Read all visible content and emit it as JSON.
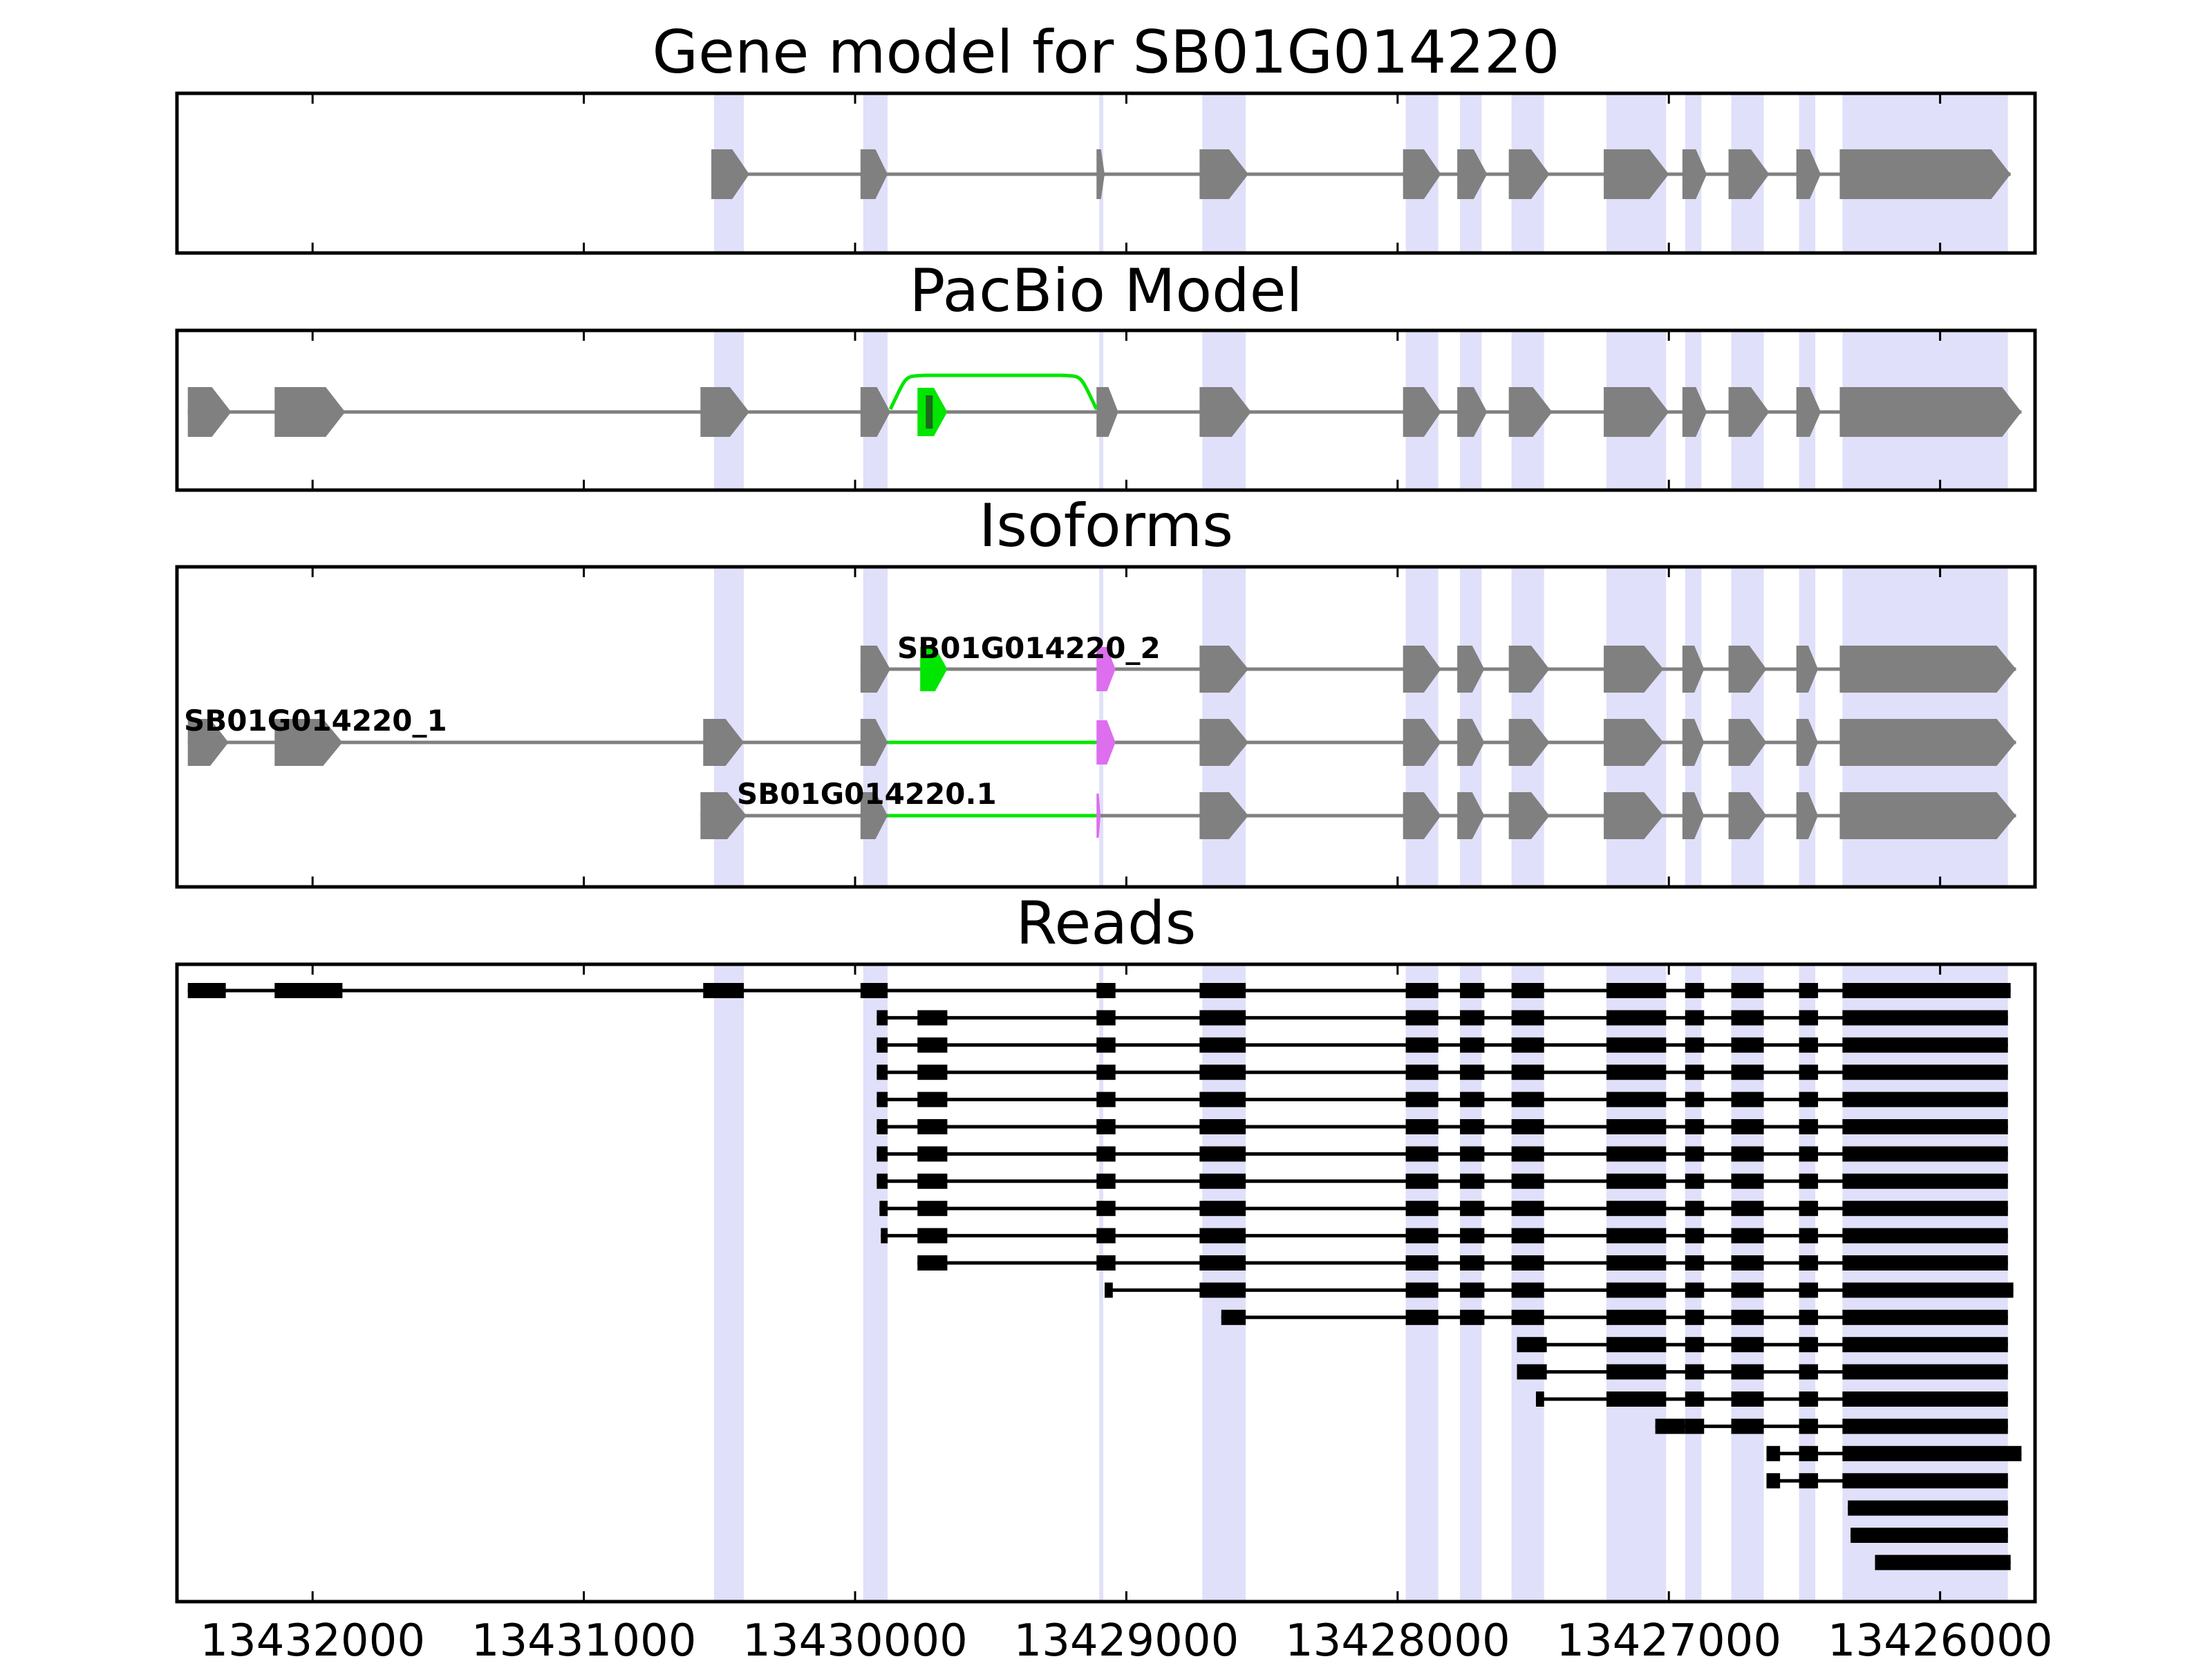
{
  "colors": {
    "exon": "#808080",
    "read": "#000000",
    "highlight": "#e0e0fa",
    "novel_exon": "#00e600",
    "alt_exon": "#dd6eee",
    "axis": "#000000"
  },
  "chart_data": {
    "type": "gene-model-tracks",
    "orientation": "reversed-x",
    "xlim": [
      13432500,
      13425650
    ],
    "xticks": [
      13432000,
      13431000,
      13430000,
      13429000,
      13428000,
      13427000,
      13426000
    ],
    "xtick_labels": [
      "13432000",
      "13431000",
      "13430000",
      "13429000",
      "13428000",
      "13427000",
      "13426000"
    ],
    "highlight_regions": [
      [
        13430520,
        13430410
      ],
      [
        13429970,
        13429880
      ],
      [
        13429100,
        13429085
      ],
      [
        13428720,
        13428560
      ],
      [
        13427970,
        13427850
      ],
      [
        13427770,
        13427690
      ],
      [
        13427580,
        13427460
      ],
      [
        13427230,
        13427010
      ],
      [
        13426940,
        13426880
      ],
      [
        13426770,
        13426650
      ],
      [
        13426520,
        13426460
      ],
      [
        13426360,
        13425750
      ]
    ],
    "gene_model": {
      "title": "Gene model for SB01G014220",
      "exons": [
        [
          13430530,
          13430390
        ],
        [
          13429980,
          13429880
        ],
        [
          13429110,
          13429080
        ],
        [
          13428730,
          13428550
        ],
        [
          13427980,
          13427840
        ],
        [
          13427780,
          13427670
        ],
        [
          13427590,
          13427440
        ],
        [
          13427240,
          13427000
        ],
        [
          13426950,
          13426860
        ],
        [
          13426780,
          13426630
        ],
        [
          13426530,
          13426440
        ],
        [
          13426370,
          13425740
        ]
      ]
    },
    "pacbio_model": {
      "title": "PacBio Model",
      "exons": [
        [
          13432460,
          13432300
        ],
        [
          13432140,
          13431880
        ],
        [
          13430570,
          13430390
        ],
        [
          13429980,
          13429870
        ],
        [
          13429110,
          13429030
        ],
        [
          13428730,
          13428540
        ],
        [
          13427980,
          13427840
        ],
        [
          13427780,
          13427670
        ],
        [
          13427590,
          13427430
        ],
        [
          13427240,
          13427000
        ],
        [
          13426950,
          13426860
        ],
        [
          13426780,
          13426630
        ],
        [
          13426530,
          13426440
        ],
        [
          13426370,
          13425700
        ]
      ],
      "novel_exon": [
        13429770,
        13429660
      ],
      "novel_arc": [
        13429870,
        13429110
      ]
    },
    "isoforms": {
      "title": "Isoforms",
      "tracks": [
        {
          "name": "SB01G014220_2",
          "exons": [
            [
              13429980,
              13429870
            ],
            [
              13428730,
              13428550
            ],
            [
              13427980,
              13427840
            ],
            [
              13427780,
              13427680
            ],
            [
              13427590,
              13427440
            ],
            [
              13427240,
              13427020
            ],
            [
              13426950,
              13426870
            ],
            [
              13426780,
              13426640
            ],
            [
              13426530,
              13426450
            ],
            [
              13426370,
              13425720
            ]
          ],
          "novel": [
            [
              13429760,
              13429660
            ]
          ],
          "alt": [
            [
              13429110,
              13429040
            ]
          ]
        },
        {
          "name": "SB01G014220_1",
          "exons": [
            [
              13432460,
              13432310
            ],
            [
              13432140,
              13431890
            ],
            [
              13430560,
              13430410
            ],
            [
              13429980,
              13429880
            ],
            [
              13428730,
              13428550
            ],
            [
              13427980,
              13427840
            ],
            [
              13427780,
              13427680
            ],
            [
              13427590,
              13427440
            ],
            [
              13427240,
              13427020
            ],
            [
              13426950,
              13426870
            ],
            [
              13426780,
              13426640
            ],
            [
              13426530,
              13426450
            ],
            [
              13426370,
              13425720
            ]
          ],
          "novel": [],
          "alt": [
            [
              13429110,
              13429040
            ]
          ],
          "green_intron": [
            13429880,
            13429110
          ]
        },
        {
          "name": "SB01G014220.1",
          "exons": [
            [
              13430570,
              13430400
            ],
            [
              13429980,
              13429880
            ],
            [
              13428730,
              13428550
            ],
            [
              13427980,
              13427840
            ],
            [
              13427780,
              13427680
            ],
            [
              13427590,
              13427440
            ],
            [
              13427240,
              13427020
            ],
            [
              13426950,
              13426870
            ],
            [
              13426780,
              13426640
            ],
            [
              13426530,
              13426450
            ],
            [
              13426370,
              13425720
            ]
          ],
          "novel": [],
          "alt": [
            [
              13429110,
              13429095
            ]
          ],
          "green_intron": [
            13429880,
            13429110
          ]
        }
      ]
    },
    "reads": {
      "title": "Reads",
      "rows": [
        [
          [
            13432460,
            13432320
          ],
          [
            13432140,
            13431890
          ],
          [
            13430560,
            13430410
          ],
          [
            13429980,
            13429880
          ],
          [
            13429110,
            13429040
          ],
          [
            13428730,
            13428560
          ],
          [
            13427970,
            13427850
          ],
          [
            13427770,
            13427680
          ],
          [
            13427580,
            13427460
          ],
          [
            13427230,
            13427010
          ],
          [
            13426940,
            13426870
          ],
          [
            13426770,
            13426650
          ],
          [
            13426520,
            13426450
          ],
          [
            13426360,
            13425740
          ]
        ],
        [
          [
            13429920,
            13429880
          ],
          [
            13429770,
            13429660
          ],
          [
            13429110,
            13429040
          ],
          [
            13428730,
            13428560
          ],
          [
            13427970,
            13427850
          ],
          [
            13427770,
            13427680
          ],
          [
            13427580,
            13427460
          ],
          [
            13427230,
            13427010
          ],
          [
            13426940,
            13426870
          ],
          [
            13426770,
            13426650
          ],
          [
            13426520,
            13426450
          ],
          [
            13426360,
            13425750
          ]
        ],
        [
          [
            13429920,
            13429880
          ],
          [
            13429770,
            13429660
          ],
          [
            13429110,
            13429040
          ],
          [
            13428730,
            13428560
          ],
          [
            13427970,
            13427850
          ],
          [
            13427770,
            13427680
          ],
          [
            13427580,
            13427460
          ],
          [
            13427230,
            13427010
          ],
          [
            13426940,
            13426870
          ],
          [
            13426770,
            13426650
          ],
          [
            13426520,
            13426450
          ],
          [
            13426360,
            13425750
          ]
        ],
        [
          [
            13429920,
            13429880
          ],
          [
            13429770,
            13429660
          ],
          [
            13429110,
            13429040
          ],
          [
            13428730,
            13428560
          ],
          [
            13427970,
            13427850
          ],
          [
            13427770,
            13427680
          ],
          [
            13427580,
            13427460
          ],
          [
            13427230,
            13427010
          ],
          [
            13426940,
            13426870
          ],
          [
            13426770,
            13426650
          ],
          [
            13426520,
            13426450
          ],
          [
            13426360,
            13425750
          ]
        ],
        [
          [
            13429920,
            13429880
          ],
          [
            13429770,
            13429660
          ],
          [
            13429110,
            13429040
          ],
          [
            13428730,
            13428560
          ],
          [
            13427970,
            13427850
          ],
          [
            13427770,
            13427680
          ],
          [
            13427580,
            13427460
          ],
          [
            13427230,
            13427010
          ],
          [
            13426940,
            13426870
          ],
          [
            13426770,
            13426650
          ],
          [
            13426520,
            13426450
          ],
          [
            13426360,
            13425750
          ]
        ],
        [
          [
            13429920,
            13429880
          ],
          [
            13429770,
            13429660
          ],
          [
            13429110,
            13429040
          ],
          [
            13428730,
            13428560
          ],
          [
            13427970,
            13427850
          ],
          [
            13427770,
            13427680
          ],
          [
            13427580,
            13427460
          ],
          [
            13427230,
            13427010
          ],
          [
            13426940,
            13426870
          ],
          [
            13426770,
            13426650
          ],
          [
            13426520,
            13426450
          ],
          [
            13426360,
            13425750
          ]
        ],
        [
          [
            13429920,
            13429880
          ],
          [
            13429770,
            13429660
          ],
          [
            13429110,
            13429040
          ],
          [
            13428730,
            13428560
          ],
          [
            13427970,
            13427850
          ],
          [
            13427770,
            13427680
          ],
          [
            13427580,
            13427460
          ],
          [
            13427230,
            13427010
          ],
          [
            13426940,
            13426870
          ],
          [
            13426770,
            13426650
          ],
          [
            13426520,
            13426450
          ],
          [
            13426360,
            13425750
          ]
        ],
        [
          [
            13429920,
            13429880
          ],
          [
            13429770,
            13429660
          ],
          [
            13429110,
            13429040
          ],
          [
            13428730,
            13428560
          ],
          [
            13427970,
            13427850
          ],
          [
            13427770,
            13427680
          ],
          [
            13427580,
            13427460
          ],
          [
            13427230,
            13427010
          ],
          [
            13426940,
            13426870
          ],
          [
            13426770,
            13426650
          ],
          [
            13426520,
            13426450
          ],
          [
            13426360,
            13425750
          ]
        ],
        [
          [
            13429910,
            13429880
          ],
          [
            13429770,
            13429660
          ],
          [
            13429110,
            13429040
          ],
          [
            13428730,
            13428560
          ],
          [
            13427970,
            13427850
          ],
          [
            13427770,
            13427680
          ],
          [
            13427580,
            13427460
          ],
          [
            13427230,
            13427010
          ],
          [
            13426940,
            13426870
          ],
          [
            13426770,
            13426650
          ],
          [
            13426520,
            13426450
          ],
          [
            13426360,
            13425750
          ]
        ],
        [
          [
            13429905,
            13429880
          ],
          [
            13429770,
            13429660
          ],
          [
            13429110,
            13429040
          ],
          [
            13428730,
            13428560
          ],
          [
            13427970,
            13427850
          ],
          [
            13427770,
            13427680
          ],
          [
            13427580,
            13427460
          ],
          [
            13427230,
            13427010
          ],
          [
            13426940,
            13426870
          ],
          [
            13426770,
            13426650
          ],
          [
            13426520,
            13426450
          ],
          [
            13426360,
            13425750
          ]
        ],
        [
          [
            13429770,
            13429660
          ],
          [
            13429110,
            13429040
          ],
          [
            13428730,
            13428560
          ],
          [
            13427970,
            13427850
          ],
          [
            13427770,
            13427680
          ],
          [
            13427580,
            13427460
          ],
          [
            13427230,
            13427010
          ],
          [
            13426940,
            13426870
          ],
          [
            13426770,
            13426650
          ],
          [
            13426520,
            13426450
          ],
          [
            13426360,
            13425750
          ]
        ],
        [
          [
            13429080,
            13429050
          ],
          [
            13428730,
            13428560
          ],
          [
            13427970,
            13427850
          ],
          [
            13427770,
            13427680
          ],
          [
            13427580,
            13427460
          ],
          [
            13427230,
            13427010
          ],
          [
            13426940,
            13426870
          ],
          [
            13426770,
            13426650
          ],
          [
            13426520,
            13426450
          ],
          [
            13426360,
            13425730
          ]
        ],
        [
          [
            13428650,
            13428560
          ],
          [
            13427970,
            13427850
          ],
          [
            13427770,
            13427680
          ],
          [
            13427580,
            13427460
          ],
          [
            13427230,
            13427010
          ],
          [
            13426940,
            13426870
          ],
          [
            13426770,
            13426650
          ],
          [
            13426520,
            13426450
          ],
          [
            13426360,
            13425750
          ]
        ],
        [
          [
            13427560,
            13427450
          ],
          [
            13427230,
            13427010
          ],
          [
            13426940,
            13426870
          ],
          [
            13426770,
            13426650
          ],
          [
            13426520,
            13426450
          ],
          [
            13426360,
            13425750
          ]
        ],
        [
          [
            13427560,
            13427450
          ],
          [
            13427230,
            13427010
          ],
          [
            13426940,
            13426870
          ],
          [
            13426770,
            13426650
          ],
          [
            13426520,
            13426450
          ],
          [
            13426360,
            13425750
          ]
        ],
        [
          [
            13427490,
            13427460
          ],
          [
            13427230,
            13427010
          ],
          [
            13426940,
            13426870
          ],
          [
            13426770,
            13426650
          ],
          [
            13426520,
            13426450
          ],
          [
            13426360,
            13425750
          ]
        ],
        [
          [
            13427050,
            13426940
          ],
          [
            13426940,
            13426870
          ],
          [
            13426770,
            13426650
          ],
          [
            13426520,
            13426450
          ],
          [
            13426360,
            13425750
          ]
        ],
        [
          [
            13426640,
            13426590
          ],
          [
            13426520,
            13426450
          ],
          [
            13426360,
            13425700
          ]
        ],
        [
          [
            13426640,
            13426590
          ],
          [
            13426520,
            13426450
          ],
          [
            13426360,
            13425750
          ]
        ],
        [
          [
            13426340,
            13425750
          ]
        ],
        [
          [
            13426330,
            13425750
          ]
        ],
        [
          [
            13426240,
            13425740
          ]
        ]
      ]
    }
  }
}
